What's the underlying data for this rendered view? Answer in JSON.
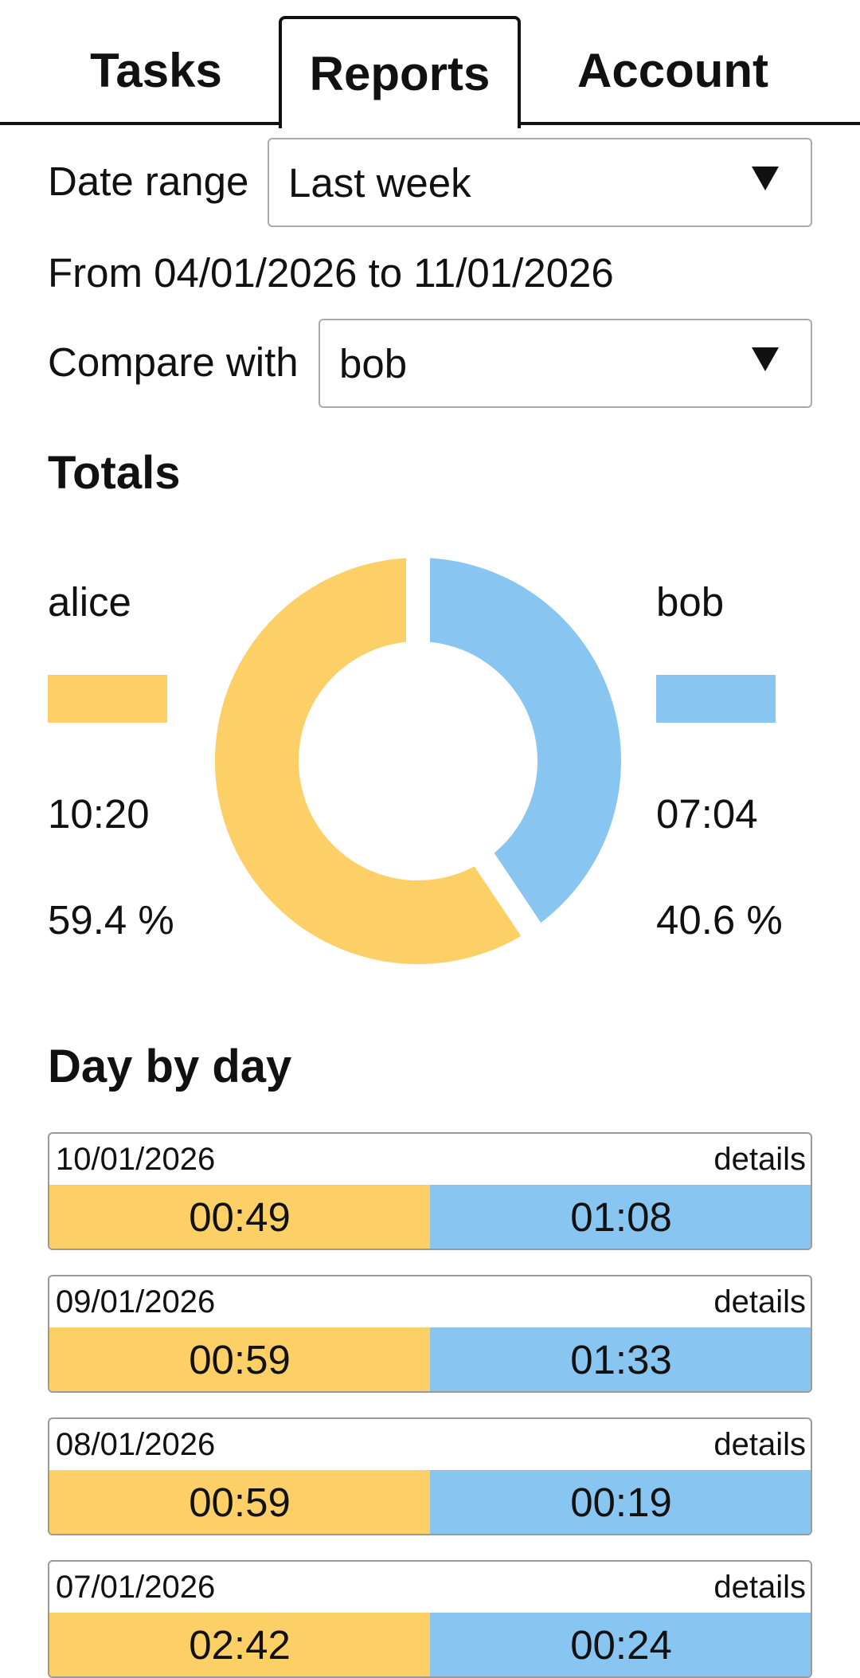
{
  "tabs": {
    "tasks": "Tasks",
    "reports": "Reports",
    "account": "Account"
  },
  "filters": {
    "date_range_label": "Date range",
    "date_range_value": "Last week",
    "range_text": "From 04/01/2026 to 11/01/2026",
    "compare_label": "Compare with",
    "compare_value": "bob"
  },
  "totals": {
    "title": "Totals",
    "left": {
      "name": "alice",
      "time": "10:20",
      "percent": "59.4 %",
      "color": "#FDCF67"
    },
    "right": {
      "name": "bob",
      "time": "07:04",
      "percent": "40.6 %",
      "color": "#88C6F1"
    }
  },
  "chart_data": {
    "type": "pie",
    "variant": "donut",
    "labels": [
      "alice",
      "bob"
    ],
    "values": [
      59.4,
      40.6
    ],
    "colors": [
      "#FDCF67",
      "#88C6F1"
    ]
  },
  "day_by_day": {
    "title": "Day by day",
    "details_label": "details",
    "days": [
      {
        "date": "10/01/2026",
        "alice": "00:49",
        "bob": "01:08"
      },
      {
        "date": "09/01/2026",
        "alice": "00:59",
        "bob": "01:33"
      },
      {
        "date": "08/01/2026",
        "alice": "00:59",
        "bob": "00:19"
      },
      {
        "date": "07/01/2026",
        "alice": "02:42",
        "bob": "00:24"
      }
    ]
  }
}
